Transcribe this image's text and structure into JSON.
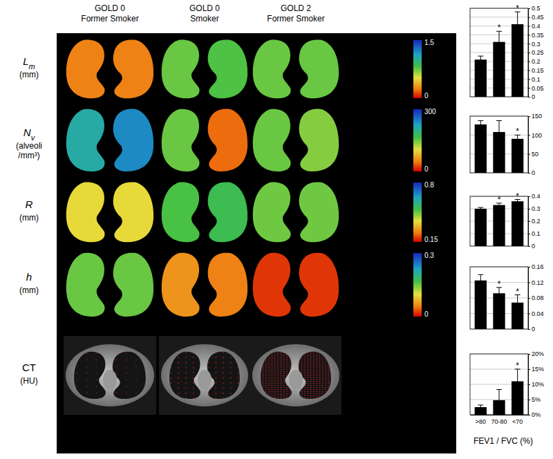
{
  "panels": {
    "columns": [
      {
        "lines": [
          "GOLD 0",
          "Former Smoker"
        ]
      },
      {
        "lines": [
          "GOLD 0",
          "Smoker"
        ]
      },
      {
        "lines": [
          "GOLD 2",
          "Former Smoker"
        ]
      }
    ],
    "rows": [
      {
        "symbol": "L",
        "subscript": "m",
        "unit": [
          "(mm)"
        ],
        "colorbar": {
          "range": [
            0,
            1.5
          ],
          "ticks": [
            0,
            1.5
          ]
        },
        "maps": [
          [
            0.25,
            0.25
          ],
          [
            0.75,
            0.8
          ],
          [
            0.75,
            0.75
          ]
        ]
      },
      {
        "symbol": "N",
        "subscript": "v",
        "unit": [
          "(alveoli",
          "/mm³)"
        ],
        "colorbar": {
          "range": [
            0,
            300
          ],
          "ticks": [
            0,
            300
          ]
        },
        "maps": [
          [
            210,
            240
          ],
          [
            150,
            40
          ],
          [
            150,
            140
          ]
        ]
      },
      {
        "symbol": "R",
        "unit": [
          "(mm)"
        ],
        "colorbar": {
          "range": [
            0.15,
            0.8
          ],
          "ticks": [
            0.15,
            0.8
          ]
        },
        "maps": [
          [
            0.37,
            0.37
          ],
          [
            0.5,
            0.52
          ],
          [
            0.47,
            0.47
          ]
        ]
      },
      {
        "symbol": "h",
        "unit": [
          "(mm)"
        ],
        "colorbar": {
          "range": [
            0,
            0.3
          ],
          "ticks": [
            0,
            0.3
          ]
        },
        "maps": [
          [
            0.15,
            0.15
          ],
          [
            0.06,
            0.05
          ],
          [
            0.02,
            0.02
          ]
        ]
      },
      {
        "symbol": "CT",
        "unit": [
          "(HU)"
        ]
      }
    ]
  },
  "chart_data": [
    {
      "type": "bar",
      "categories": [
        ">80",
        "70-80",
        "<70"
      ],
      "values": [
        0.21,
        0.31,
        0.41
      ],
      "errors": [
        0.02,
        0.06,
        0.07
      ],
      "annotations": [
        null,
        "*",
        "*"
      ],
      "color": "#000000",
      "ylim": [
        0,
        0.5
      ],
      "yticks": [
        0,
        0.05,
        0.1,
        0.15,
        0.2,
        0.25,
        0.3,
        0.35,
        0.4,
        0.45,
        0.5
      ],
      "grid": true,
      "tick_labels": "y"
    },
    {
      "type": "bar",
      "categories": [
        ">80",
        "70-80",
        "<70"
      ],
      "values": [
        128,
        108,
        90
      ],
      "errors": [
        10,
        30,
        10
      ],
      "annotations": [
        null,
        null,
        "*"
      ],
      "color": "#000000",
      "ylim": [
        0,
        150
      ],
      "yticks": [
        0,
        50,
        100,
        150
      ],
      "grid": true,
      "tick_labels": "y"
    },
    {
      "type": "bar",
      "categories": [
        ">80",
        "70-80",
        "<70"
      ],
      "values": [
        0.3,
        0.33,
        0.36
      ],
      "errors": [
        0.01,
        0.015,
        0.015
      ],
      "annotations": [
        null,
        "*",
        "*"
      ],
      "color": "#000000",
      "ylim": [
        0,
        0.4
      ],
      "yticks": [
        0,
        0.1,
        0.2,
        0.3,
        0.4
      ],
      "grid": true,
      "tick_labels": "y"
    },
    {
      "type": "bar",
      "categories": [
        ">80",
        "70-80",
        "<70"
      ],
      "values": [
        0.125,
        0.092,
        0.068
      ],
      "errors": [
        0.015,
        0.015,
        0.02
      ],
      "annotations": [
        null,
        "*",
        "*"
      ],
      "color": "#000000",
      "ylim": [
        0,
        0.16
      ],
      "yticks": [
        0,
        0.04,
        0.08,
        0.12,
        0.16
      ],
      "grid": true,
      "tick_labels": "y"
    },
    {
      "type": "bar",
      "categories": [
        ">80",
        "70-80",
        "<70"
      ],
      "values": [
        2.5,
        4.8,
        11
      ],
      "errors": [
        0.7,
        3.5,
        4
      ],
      "annotations": [
        null,
        null,
        "*"
      ],
      "color": "#000000",
      "ylim": [
        0,
        20
      ],
      "yticks": [
        {
          "value": 0,
          "label": "0%"
        },
        {
          "value": 5,
          "label": "5%"
        },
        {
          "value": 10,
          "label": "10%"
        },
        {
          "value": 15,
          "label": "15%"
        },
        {
          "value": 20,
          "label": "20%"
        }
      ],
      "grid": true,
      "xlabel": "FEV1 / FVC (%)"
    }
  ]
}
